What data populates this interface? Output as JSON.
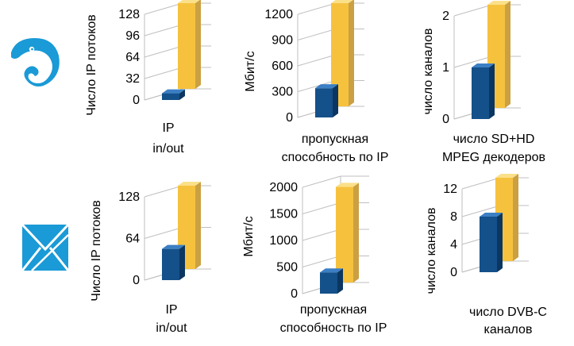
{
  "colors": {
    "blue_front": "#14508a",
    "blue_side": "#0b3661",
    "blue_top": "#3b7fc4",
    "gold_front": "#f6c23e",
    "gold_side": "#caa043",
    "gold_top": "#fbe08a",
    "grid": "#bfbfbf",
    "icon": "#1a9ad6"
  },
  "icons": [
    "chameleon-logo-icon",
    "envelope-logo-icon"
  ],
  "chart_data": [
    {
      "type": "bar",
      "row": 1,
      "ylabel": "Число IP потоков",
      "xlabel": [
        "IP",
        "in/out"
      ],
      "ticks": [
        0,
        32,
        64,
        96,
        128
      ],
      "ylim": [
        0,
        128
      ],
      "values": [
        10,
        128
      ]
    },
    {
      "type": "bar",
      "row": 1,
      "ylabel": "Мбит/с",
      "xlabel": [
        "пропускная",
        "способность по IP"
      ],
      "ticks": [
        0,
        300,
        600,
        900,
        1200
      ],
      "ylim": [
        0,
        1200
      ],
      "values": [
        340,
        1200
      ]
    },
    {
      "type": "bar",
      "row": 1,
      "ylabel": "число каналов",
      "xlabel": [
        "число SD+HD",
        "MPEG декодеров"
      ],
      "ticks": [
        0,
        1,
        2
      ],
      "ylim": [
        0,
        2
      ],
      "values": [
        1,
        2
      ]
    },
    {
      "type": "bar",
      "row": 2,
      "ylabel": "Число IP потоков",
      "xlabel": [
        "IP",
        "in/out"
      ],
      "ticks": [
        0,
        64,
        128
      ],
      "ylim": [
        0,
        128
      ],
      "values": [
        48,
        128
      ]
    },
    {
      "type": "bar",
      "row": 2,
      "ylabel": "Мбит/с",
      "xlabel": [
        "пропускная",
        "способность по IP"
      ],
      "ticks": [
        0,
        500,
        1000,
        1500,
        2000
      ],
      "ylim": [
        0,
        2000
      ],
      "values": [
        400,
        1800
      ]
    },
    {
      "type": "bar",
      "row": 2,
      "ylabel": "число каналов",
      "xlabel": [
        "число DVB-C",
        "каналов"
      ],
      "ticks": [
        0,
        4,
        8,
        12
      ],
      "ylim": [
        0,
        12
      ],
      "values": [
        8,
        12
      ]
    }
  ]
}
